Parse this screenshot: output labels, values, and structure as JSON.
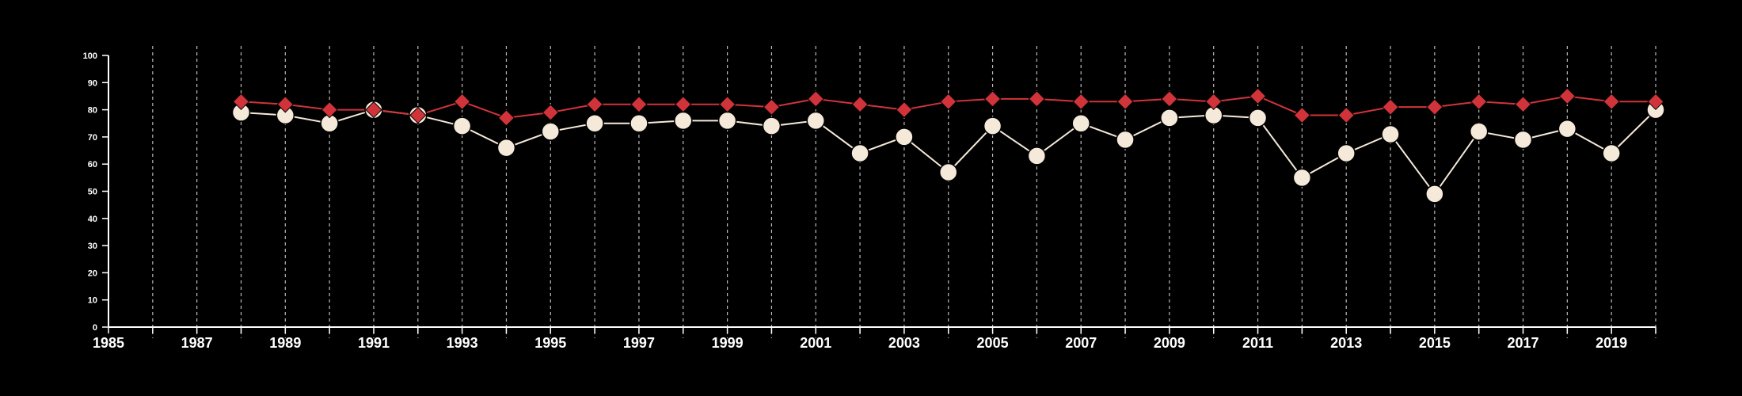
{
  "chart_data": {
    "type": "line",
    "title": "",
    "xlabel": "",
    "ylabel": "",
    "xlim": [
      1985,
      2020
    ],
    "ylim": [
      0,
      100
    ],
    "x_ticks": [
      "1985",
      "1987",
      "1989",
      "1991",
      "1993",
      "1995",
      "1997",
      "1999",
      "2001",
      "2003",
      "2005",
      "2007",
      "2009",
      "2011",
      "2013",
      "2015",
      "2017",
      "2019"
    ],
    "y_ticks": [
      "0",
      "10",
      "20",
      "30",
      "40",
      "50",
      "60",
      "70",
      "80",
      "90",
      "100"
    ],
    "grid": "vertical dashed lines at each year",
    "legend": "none",
    "x": [
      1988,
      1989,
      1990,
      1991,
      1992,
      1993,
      1994,
      1995,
      1996,
      1997,
      1998,
      1999,
      2000,
      2001,
      2002,
      2003,
      2004,
      2005,
      2006,
      2007,
      2008,
      2009,
      2010,
      2011,
      2012,
      2013,
      2014,
      2015,
      2016,
      2017,
      2018,
      2019,
      2020
    ],
    "series": [
      {
        "marker": "diamond",
        "color": "#d0343a",
        "values": [
          83,
          82,
          80,
          80,
          78,
          83,
          77,
          79,
          82,
          82,
          82,
          82,
          81,
          84,
          82,
          80,
          83,
          84,
          84,
          83,
          83,
          84,
          83,
          85,
          78,
          78,
          81,
          81,
          83,
          82,
          85,
          83,
          83
        ]
      },
      {
        "marker": "circle",
        "color": "#f5e9d9",
        "values": [
          79,
          78,
          75,
          80,
          78,
          74,
          66,
          72,
          75,
          75,
          76,
          76,
          74,
          76,
          64,
          70,
          57,
          74,
          63,
          75,
          69,
          77,
          78,
          77,
          55,
          64,
          71,
          49,
          72,
          69,
          73,
          64,
          80
        ]
      }
    ]
  },
  "colors": {
    "background": "#000000",
    "axis": "#ffffff",
    "grid": "#bbbbbb"
  }
}
